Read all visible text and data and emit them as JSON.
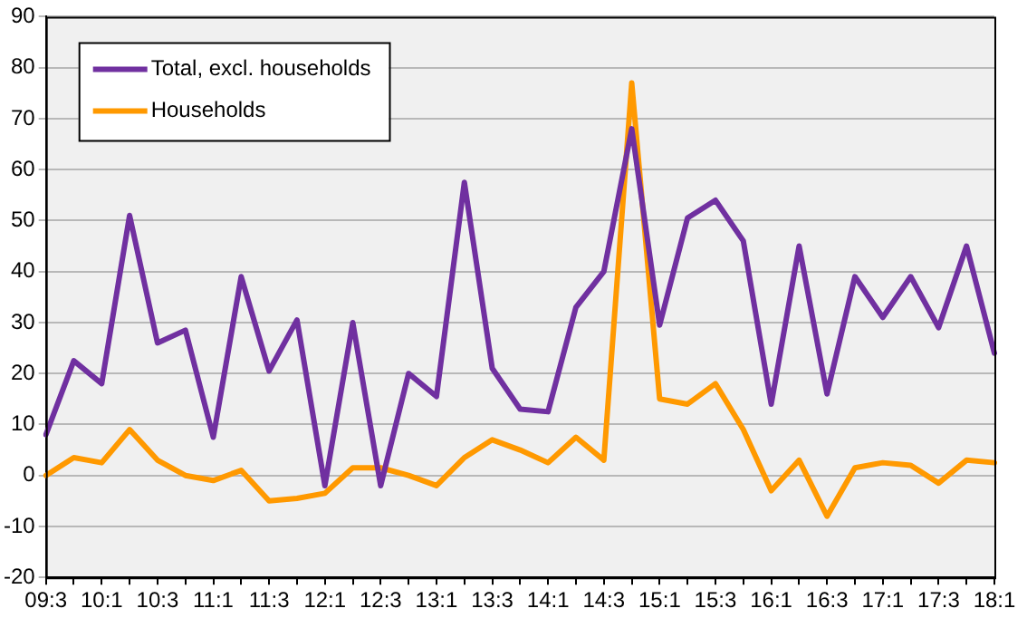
{
  "chart_data": {
    "type": "line",
    "categories": [
      "09:3",
      null,
      "10:1",
      null,
      "10:3",
      null,
      "11:1",
      null,
      "11:3",
      null,
      "12:1",
      null,
      "12:3",
      null,
      "13:1",
      null,
      "13:3",
      null,
      "14:1",
      null,
      "14:3",
      null,
      "15:1",
      null,
      "15:3",
      null,
      "16:1",
      null,
      "16:3",
      null,
      "17:1",
      null,
      "17:3",
      null,
      "18:1"
    ],
    "series": [
      {
        "name": "Total, excl. households",
        "color": "#7030a0",
        "values": [
          8,
          22.5,
          18,
          51,
          26,
          28.5,
          7.5,
          39,
          20.5,
          30.5,
          -2,
          30,
          -2,
          20,
          15.5,
          57.5,
          21,
          13,
          12.5,
          33,
          40,
          68,
          29.5,
          50.5,
          54,
          46,
          14,
          45,
          16,
          39,
          31,
          39,
          29,
          45,
          24
        ]
      },
      {
        "name": "Households",
        "color": "#ff9900",
        "values": [
          0,
          3.5,
          2.5,
          9,
          3,
          0,
          -1,
          1,
          -5,
          -4.5,
          -3.5,
          1.5,
          1.5,
          0,
          -2,
          3.5,
          7,
          5,
          2.5,
          7.5,
          3,
          77,
          15,
          14,
          18,
          9,
          -3,
          3,
          -8,
          1.5,
          2.5,
          2,
          -1.5,
          3,
          2.5
        ]
      }
    ],
    "ylim": [
      -20,
      90
    ],
    "yticks": [
      -20,
      -10,
      0,
      10,
      20,
      30,
      40,
      50,
      60,
      70,
      80,
      90
    ],
    "grid": "y",
    "legend": "top left",
    "marker": "none",
    "line_style": "solid"
  }
}
